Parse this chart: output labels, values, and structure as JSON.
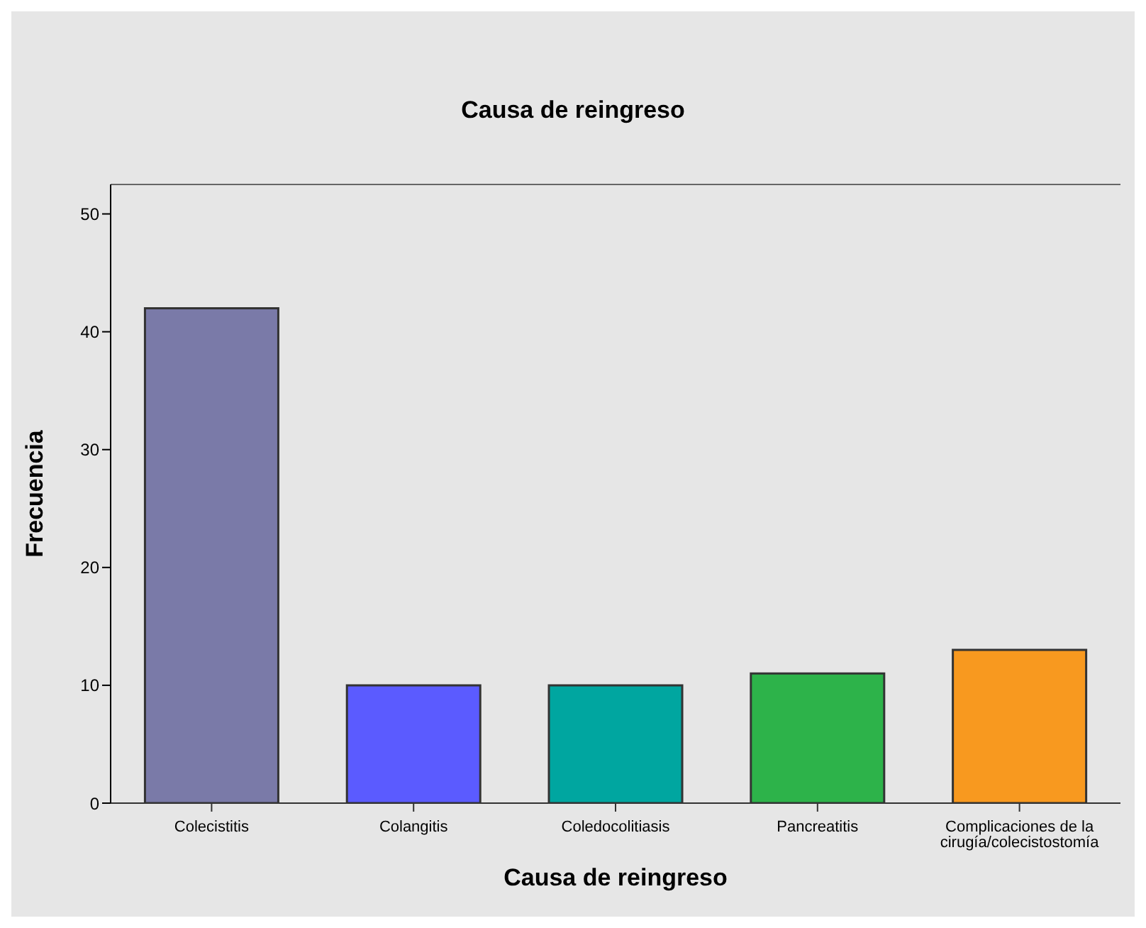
{
  "chart_data": {
    "type": "bar",
    "title": "Causa de reingreso",
    "xlabel": "Causa de reingreso",
    "ylabel": "Frecuencia",
    "categories": [
      "Colecistitis",
      "Colangitis",
      "Coledocolitiasis",
      "Pancreatitis",
      "Complicaciones de la cirugía/colecistostomía"
    ],
    "values": [
      42,
      10,
      10,
      11,
      13
    ],
    "colors": [
      "#7a7aa8",
      "#5b5bff",
      "#00a6a0",
      "#2db34a",
      "#f8991f"
    ],
    "ylim": [
      0,
      52.5
    ],
    "yticks": [
      0,
      10,
      20,
      30,
      40,
      50
    ],
    "grid": false,
    "legend": false
  }
}
